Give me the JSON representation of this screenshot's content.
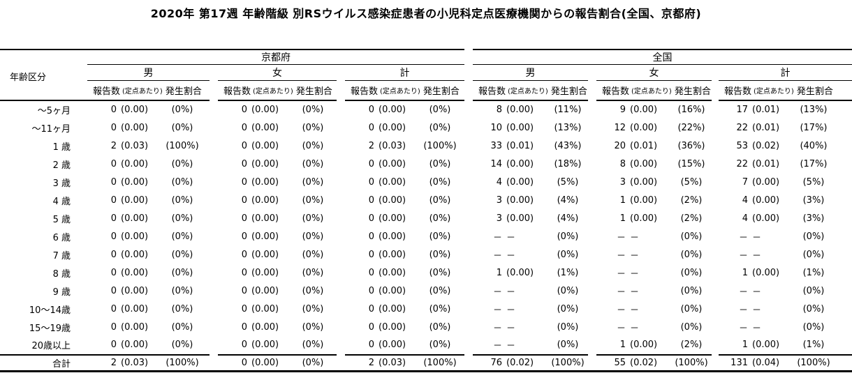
{
  "chart_data": {
    "type": "table",
    "title": "2020年 第17週 年齢階級 別RSウイルス感染症患者の小児科定点医療機関からの報告割合(全国、京都府)",
    "row_header": "年齢区分",
    "col_groups": [
      "京都府",
      "全国"
    ],
    "sub_groups": [
      "男",
      "女",
      "計"
    ],
    "measures": [
      "報告数",
      "(定点あたり)",
      "発生割合"
    ],
    "cell_order": [
      "kyoto-male",
      "kyoto-female",
      "kyoto-total",
      "zenkoku-male",
      "zenkoku-female",
      "zenkoku-total"
    ],
    "rows": [
      {
        "age": "～5ヶ月",
        "cells": [
          [
            "0",
            "(0.00)",
            "(0%)"
          ],
          [
            "0",
            "(0.00)",
            "(0%)"
          ],
          [
            "0",
            "(0.00)",
            "(0%)"
          ],
          [
            "8",
            "(0.00)",
            "(11%)"
          ],
          [
            "9",
            "(0.00)",
            "(16%)"
          ],
          [
            "17",
            "(0.01)",
            "(13%)"
          ]
        ]
      },
      {
        "age": "～11ヶ月",
        "cells": [
          [
            "0",
            "(0.00)",
            "(0%)"
          ],
          [
            "0",
            "(0.00)",
            "(0%)"
          ],
          [
            "0",
            "(0.00)",
            "(0%)"
          ],
          [
            "10",
            "(0.00)",
            "(13%)"
          ],
          [
            "12",
            "(0.00)",
            "(22%)"
          ],
          [
            "22",
            "(0.01)",
            "(17%)"
          ]
        ]
      },
      {
        "age": "1 歳",
        "cells": [
          [
            "2",
            "(0.03)",
            "(100%)"
          ],
          [
            "0",
            "(0.00)",
            "(0%)"
          ],
          [
            "2",
            "(0.03)",
            "(100%)"
          ],
          [
            "33",
            "(0.01)",
            "(43%)"
          ],
          [
            "20",
            "(0.01)",
            "(36%)"
          ],
          [
            "53",
            "(0.02)",
            "(40%)"
          ]
        ]
      },
      {
        "age": "2 歳",
        "cells": [
          [
            "0",
            "(0.00)",
            "(0%)"
          ],
          [
            "0",
            "(0.00)",
            "(0%)"
          ],
          [
            "0",
            "(0.00)",
            "(0%)"
          ],
          [
            "14",
            "(0.00)",
            "(18%)"
          ],
          [
            "8",
            "(0.00)",
            "(15%)"
          ],
          [
            "22",
            "(0.01)",
            "(17%)"
          ]
        ]
      },
      {
        "age": "3 歳",
        "cells": [
          [
            "0",
            "(0.00)",
            "(0%)"
          ],
          [
            "0",
            "(0.00)",
            "(0%)"
          ],
          [
            "0",
            "(0.00)",
            "(0%)"
          ],
          [
            "4",
            "(0.00)",
            "(5%)"
          ],
          [
            "3",
            "(0.00)",
            "(5%)"
          ],
          [
            "7",
            "(0.00)",
            "(5%)"
          ]
        ]
      },
      {
        "age": "4 歳",
        "cells": [
          [
            "0",
            "(0.00)",
            "(0%)"
          ],
          [
            "0",
            "(0.00)",
            "(0%)"
          ],
          [
            "0",
            "(0.00)",
            "(0%)"
          ],
          [
            "3",
            "(0.00)",
            "(4%)"
          ],
          [
            "1",
            "(0.00)",
            "(2%)"
          ],
          [
            "4",
            "(0.00)",
            "(3%)"
          ]
        ]
      },
      {
        "age": "5 歳",
        "cells": [
          [
            "0",
            "(0.00)",
            "(0%)"
          ],
          [
            "0",
            "(0.00)",
            "(0%)"
          ],
          [
            "0",
            "(0.00)",
            "(0%)"
          ],
          [
            "3",
            "(0.00)",
            "(4%)"
          ],
          [
            "1",
            "(0.00)",
            "(2%)"
          ],
          [
            "4",
            "(0.00)",
            "(3%)"
          ]
        ]
      },
      {
        "age": "6 歳",
        "cells": [
          [
            "0",
            "(0.00)",
            "(0%)"
          ],
          [
            "0",
            "(0.00)",
            "(0%)"
          ],
          [
            "0",
            "(0.00)",
            "(0%)"
          ],
          [
            "－",
            "－",
            "(0%)"
          ],
          [
            "－",
            "－",
            "(0%)"
          ],
          [
            "－",
            "－",
            "(0%)"
          ]
        ]
      },
      {
        "age": "7 歳",
        "cells": [
          [
            "0",
            "(0.00)",
            "(0%)"
          ],
          [
            "0",
            "(0.00)",
            "(0%)"
          ],
          [
            "0",
            "(0.00)",
            "(0%)"
          ],
          [
            "－",
            "－",
            "(0%)"
          ],
          [
            "－",
            "－",
            "(0%)"
          ],
          [
            "－",
            "－",
            "(0%)"
          ]
        ]
      },
      {
        "age": "8 歳",
        "cells": [
          [
            "0",
            "(0.00)",
            "(0%)"
          ],
          [
            "0",
            "(0.00)",
            "(0%)"
          ],
          [
            "0",
            "(0.00)",
            "(0%)"
          ],
          [
            "1",
            "(0.00)",
            "(1%)"
          ],
          [
            "－",
            "－",
            "(0%)"
          ],
          [
            "1",
            "(0.00)",
            "(1%)"
          ]
        ]
      },
      {
        "age": "9 歳",
        "cells": [
          [
            "0",
            "(0.00)",
            "(0%)"
          ],
          [
            "0",
            "(0.00)",
            "(0%)"
          ],
          [
            "0",
            "(0.00)",
            "(0%)"
          ],
          [
            "－",
            "－",
            "(0%)"
          ],
          [
            "－",
            "－",
            "(0%)"
          ],
          [
            "－",
            "－",
            "(0%)"
          ]
        ]
      },
      {
        "age": "10～14歳",
        "cells": [
          [
            "0",
            "(0.00)",
            "(0%)"
          ],
          [
            "0",
            "(0.00)",
            "(0%)"
          ],
          [
            "0",
            "(0.00)",
            "(0%)"
          ],
          [
            "－",
            "－",
            "(0%)"
          ],
          [
            "－",
            "－",
            "(0%)"
          ],
          [
            "－",
            "－",
            "(0%)"
          ]
        ]
      },
      {
        "age": "15～19歳",
        "cells": [
          [
            "0",
            "(0.00)",
            "(0%)"
          ],
          [
            "0",
            "(0.00)",
            "(0%)"
          ],
          [
            "0",
            "(0.00)",
            "(0%)"
          ],
          [
            "－",
            "－",
            "(0%)"
          ],
          [
            "－",
            "－",
            "(0%)"
          ],
          [
            "－",
            "－",
            "(0%)"
          ]
        ]
      },
      {
        "age": "20歳以上",
        "cells": [
          [
            "0",
            "(0.00)",
            "(0%)"
          ],
          [
            "0",
            "(0.00)",
            "(0%)"
          ],
          [
            "0",
            "(0.00)",
            "(0%)"
          ],
          [
            "－",
            "－",
            "(0%)"
          ],
          [
            "1",
            "(0.00)",
            "(2%)"
          ],
          [
            "1",
            "(0.00)",
            "(1%)"
          ]
        ]
      }
    ],
    "total": {
      "age": "合計",
      "cells": [
        [
          "2",
          "(0.03)",
          "(100%)"
        ],
        [
          "0",
          "(0.00)",
          "(0%)"
        ],
        [
          "2",
          "(0.03)",
          "(100%)"
        ],
        [
          "76",
          "(0.02)",
          "(100%)"
        ],
        [
          "55",
          "(0.02)",
          "(100%)"
        ],
        [
          "131",
          "(0.04)",
          "(100%)"
        ]
      ]
    }
  }
}
